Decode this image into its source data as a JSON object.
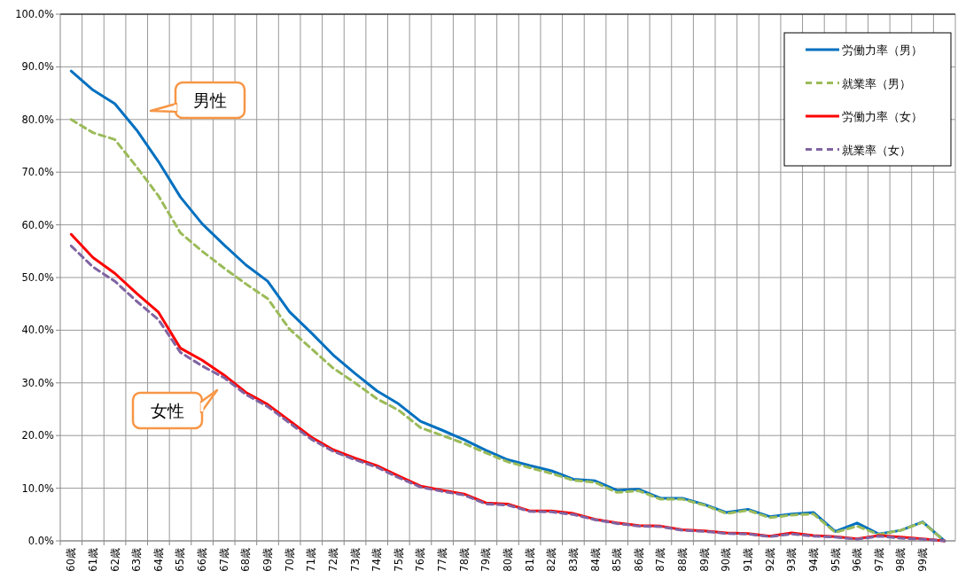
{
  "chart_data": {
    "type": "line",
    "categories": [
      "60歳",
      "61歳",
      "62歳",
      "63歳",
      "64歳",
      "65歳",
      "66歳",
      "67歳",
      "68歳",
      "69歳",
      "70歳",
      "71歳",
      "72歳",
      "73歳",
      "74歳",
      "75歳",
      "76歳",
      "77歳",
      "78歳",
      "79歳",
      "80歳",
      "81歳",
      "82歳",
      "83歳",
      "84歳",
      "85歳",
      "86歳",
      "87歳",
      "88歳",
      "89歳",
      "90歳",
      "91歳",
      "92歳",
      "93歳",
      "94歳",
      "95歳",
      "96歳",
      "97歳",
      "98歳",
      "99歳",
      null
    ],
    "series": [
      {
        "name": "労働力率（男）",
        "color": "#0070c0",
        "line_style": "solid",
        "values": [
          89.2,
          85.6,
          83.0,
          78.0,
          72.0,
          65.3,
          60.2,
          56.2,
          52.4,
          49.3,
          43.5,
          39.5,
          35.3,
          31.8,
          28.5,
          26.0,
          22.7,
          21.0,
          19.2,
          17.2,
          15.4,
          14.3,
          13.3,
          11.7,
          11.4,
          9.6,
          9.8,
          8.1,
          8.1,
          6.9,
          5.4,
          6.0,
          4.6,
          5.1,
          5.4,
          1.8,
          3.4,
          1.3,
          2.0,
          3.6,
          0
        ]
      },
      {
        "name": "就業率（男）",
        "color": "#9bbb59",
        "line_style": "dashed",
        "values": [
          80.0,
          77.5,
          76.2,
          71.0,
          65.5,
          58.5,
          55.0,
          51.8,
          48.8,
          46.0,
          40.2,
          36.5,
          32.8,
          30.0,
          27.0,
          24.8,
          21.5,
          20.0,
          18.5,
          16.7,
          15.0,
          13.9,
          12.8,
          11.5,
          11.1,
          9.2,
          9.5,
          7.9,
          7.9,
          6.8,
          5.2,
          5.8,
          4.4,
          4.9,
          5.1,
          1.6,
          2.8,
          1.2,
          2.0,
          3.5,
          0
        ]
      },
      {
        "name": "労働力率（女）",
        "color": "#ff0000",
        "line_style": "solid",
        "values": [
          58.2,
          53.8,
          50.8,
          47.0,
          43.4,
          36.6,
          34.3,
          31.5,
          28.2,
          25.9,
          22.8,
          19.7,
          17.3,
          15.7,
          14.3,
          12.3,
          10.4,
          9.6,
          8.9,
          7.2,
          7.0,
          5.7,
          5.7,
          5.2,
          4.1,
          3.4,
          2.9,
          2.8,
          2.1,
          1.9,
          1.5,
          1.4,
          0.9,
          1.5,
          1.0,
          0.8,
          0.4,
          1.0,
          0.7,
          0.4,
          0
        ]
      },
      {
        "name": "就業率（女）",
        "color": "#8064a2",
        "line_style": "dashed",
        "values": [
          56.0,
          52.0,
          49.3,
          45.5,
          42.0,
          35.8,
          33.2,
          31.0,
          27.8,
          25.5,
          22.4,
          19.3,
          17.0,
          15.4,
          14.0,
          12.0,
          10.2,
          9.4,
          8.7,
          7.0,
          6.8,
          5.6,
          5.5,
          5.0,
          4.0,
          3.3,
          2.8,
          2.7,
          2.0,
          1.8,
          1.4,
          1.3,
          0.8,
          1.3,
          0.9,
          0.7,
          0.3,
          0.9,
          0.5,
          0.3,
          0
        ]
      }
    ],
    "ylim": [
      0,
      100
    ],
    "yticks": [
      {
        "value": 0,
        "label": "0.0%"
      },
      {
        "value": 10,
        "label": "10.0%"
      },
      {
        "value": 20,
        "label": "20.0%"
      },
      {
        "value": 30,
        "label": "30.0%"
      },
      {
        "value": 40,
        "label": "40.0%"
      },
      {
        "value": 50,
        "label": "50.0%"
      },
      {
        "value": 60,
        "label": "60.0%"
      },
      {
        "value": 70,
        "label": "70.0%"
      },
      {
        "value": 80,
        "label": "80.0%"
      },
      {
        "value": 90,
        "label": "90.0%"
      },
      {
        "value": 100,
        "label": "100.0%"
      }
    ],
    "grid": true,
    "legend": "top right",
    "marker": "none",
    "annotations": [
      "男性",
      "女性"
    ]
  }
}
